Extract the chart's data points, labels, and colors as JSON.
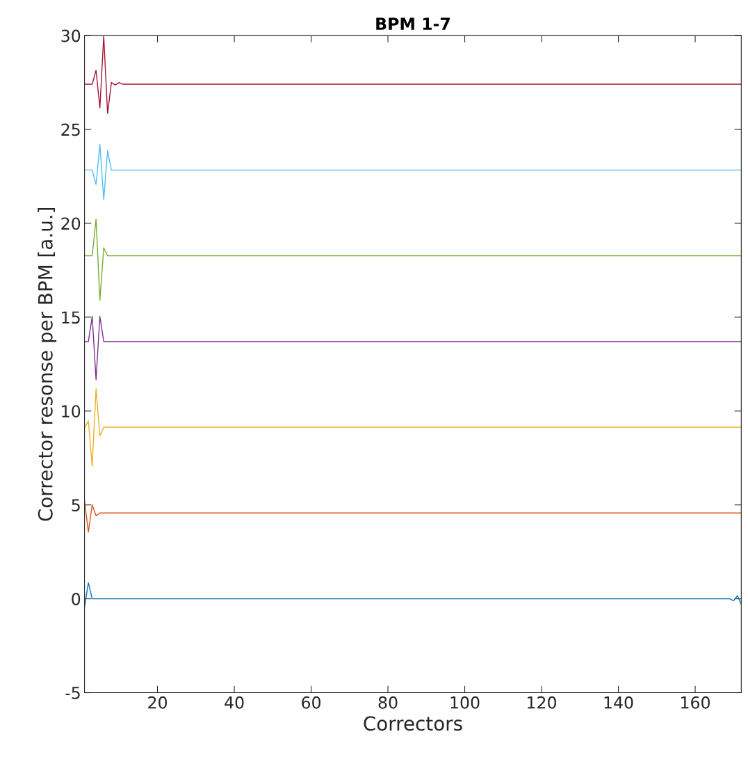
{
  "chart_data": {
    "type": "line",
    "title": "BPM 1-7",
    "xlabel": "Correctors",
    "ylabel": "Corrector resonse per BPM [a.u.]",
    "series": [
      {
        "color": "#0072bd",
        "x": [
          1,
          2,
          3,
          169,
          170,
          171,
          172
        ],
        "values": [
          -0.44,
          0.85,
          0,
          0,
          -0.1,
          0.16,
          -0.3
        ]
      },
      {
        "color": "#d95319",
        "x": [
          1,
          2,
          3,
          4,
          5,
          172
        ],
        "values": [
          5.22,
          3.56,
          5.0,
          4.42,
          4.57,
          4.57
        ]
      },
      {
        "color": "#edb120",
        "x": [
          1,
          2,
          3,
          4,
          5,
          6,
          172
        ],
        "values": [
          9.1,
          9.48,
          7.07,
          11.19,
          8.68,
          9.14,
          9.14
        ]
      },
      {
        "color": "#7e2f8e",
        "x": [
          1,
          2,
          3,
          4,
          5,
          6,
          172
        ],
        "values": [
          13.7,
          13.7,
          15.04,
          11.67,
          15.04,
          13.7,
          13.7
        ]
      },
      {
        "color": "#77ac30",
        "x": [
          1,
          3,
          4,
          5,
          6,
          7,
          172
        ],
        "values": [
          18.27,
          18.27,
          20.22,
          15.9,
          18.7,
          18.27,
          18.27
        ]
      },
      {
        "color": "#4dbeee",
        "x": [
          1,
          3,
          4,
          5,
          6,
          7,
          8,
          172
        ],
        "values": [
          22.84,
          22.84,
          22.07,
          24.2,
          21.27,
          23.86,
          22.84,
          22.84
        ]
      },
      {
        "color": "#a2142f",
        "x": [
          1,
          3,
          4,
          5,
          6,
          7,
          8,
          9,
          10,
          11,
          172
        ],
        "values": [
          27.41,
          27.41,
          28.15,
          26.15,
          29.97,
          25.85,
          27.5,
          27.37,
          27.5,
          27.41,
          27.41
        ]
      }
    ],
    "xlim": [
      1,
      172
    ],
    "xticks": [
      20,
      40,
      60,
      80,
      100,
      120,
      140,
      160
    ],
    "ylim": [
      -5,
      30
    ],
    "yticks": [
      -5,
      0,
      5,
      10,
      15,
      20,
      25,
      30
    ],
    "grid": false,
    "legend": false,
    "marker": "none",
    "line_style": "solid"
  }
}
